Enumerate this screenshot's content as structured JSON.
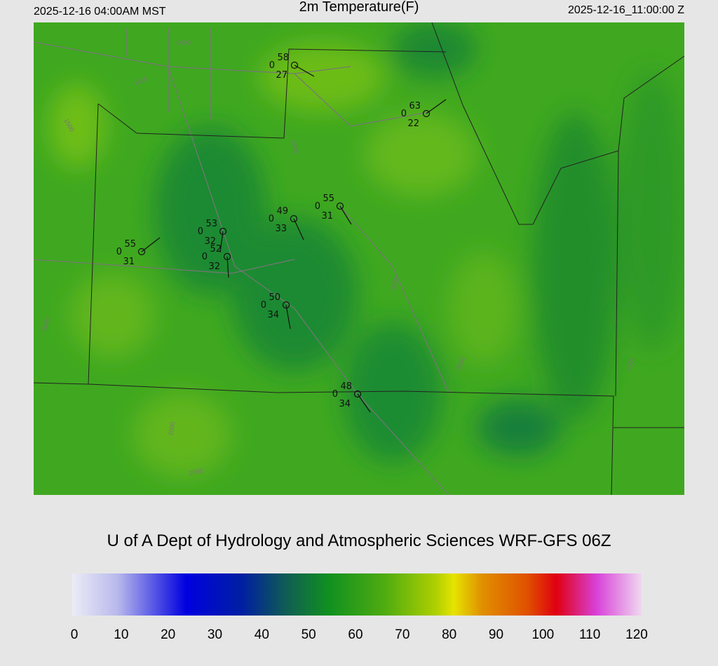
{
  "header": {
    "left": "2025-12-16 04:00AM MST",
    "title": "2m Temperature(F)",
    "right": "2025-12-16_11:00:00 Z"
  },
  "credit": "U of A Dept of Hydrology and Atmospheric Sciences WRF-GFS 06Z",
  "colorbar": {
    "min": 0,
    "max": 120,
    "ticks": [
      0,
      10,
      20,
      30,
      40,
      50,
      60,
      70,
      80,
      90,
      100,
      110,
      120
    ]
  },
  "stations": [
    {
      "temp": 58,
      "sky": 0,
      "dew": 27
    },
    {
      "temp": 63,
      "sky": 0,
      "dew": 22
    },
    {
      "temp": 55,
      "sky": 0,
      "dew": 31
    },
    {
      "temp": 49,
      "sky": 0,
      "dew": 33
    },
    {
      "temp": 53,
      "sky": 0,
      "dew": 32
    },
    {
      "temp": 52,
      "sky": 0,
      "dew": 32
    },
    {
      "temp": 55,
      "sky": 0,
      "dew": 31
    },
    {
      "temp": 50,
      "sky": 0,
      "dew": 34
    },
    {
      "temp": 48,
      "sky": 0,
      "dew": 34
    }
  ],
  "contour_labels": [
    "1500",
    "1500",
    "1500",
    "2000",
    "2500",
    "2000",
    "3000",
    "2000",
    "2000",
    "2500"
  ]
}
